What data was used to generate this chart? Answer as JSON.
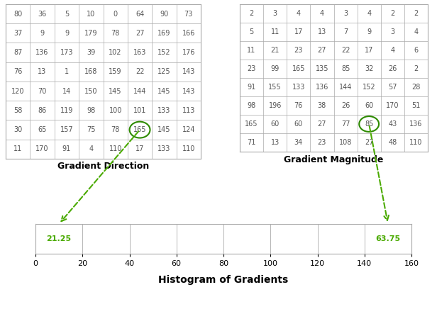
{
  "grad_dir": [
    [
      80,
      36,
      5,
      10,
      0,
      64,
      90,
      73
    ],
    [
      37,
      9,
      9,
      179,
      78,
      27,
      169,
      166
    ],
    [
      87,
      136,
      173,
      39,
      102,
      163,
      152,
      176
    ],
    [
      76,
      13,
      1,
      168,
      159,
      22,
      125,
      143
    ],
    [
      120,
      70,
      14,
      150,
      145,
      144,
      145,
      143
    ],
    [
      58,
      86,
      119,
      98,
      100,
      101,
      133,
      113
    ],
    [
      30,
      65,
      157,
      75,
      78,
      165,
      145,
      124
    ],
    [
      11,
      170,
      91,
      4,
      110,
      17,
      133,
      110
    ]
  ],
  "grad_dir_circle_row": 6,
  "grad_dir_circle_col": 5,
  "grad_mag": [
    [
      2,
      3,
      4,
      4,
      3,
      4,
      2,
      2
    ],
    [
      5,
      11,
      17,
      13,
      7,
      9,
      3,
      4
    ],
    [
      11,
      21,
      23,
      27,
      22,
      17,
      4,
      6
    ],
    [
      23,
      99,
      165,
      135,
      85,
      32,
      26,
      2
    ],
    [
      91,
      155,
      133,
      136,
      144,
      152,
      57,
      28
    ],
    [
      98,
      196,
      76,
      38,
      26,
      60,
      170,
      51
    ],
    [
      165,
      60,
      60,
      27,
      77,
      85,
      43,
      136
    ],
    [
      71,
      13,
      34,
      23,
      108,
      27,
      48,
      110
    ]
  ],
  "grad_mag_circle_row": 6,
  "grad_mag_circle_col": 5,
  "hist_bins": [
    0,
    20,
    40,
    60,
    80,
    100,
    120,
    140,
    160
  ],
  "hist_bin1_label": "21.25",
  "hist_bin8_label": "63.75",
  "title_dir": "Gradient Direction",
  "title_mag": "Gradient Magnitude",
  "title_hist": "Histogram of Gradients",
  "circle_color": "#2e8b00",
  "arrow_color": "#4aaa00",
  "table_text_color": "#555555",
  "green_text_color": "#4aaa00",
  "background_color": "#ffffff",
  "grid_color": "#aaaaaa",
  "table_fontsize": 7,
  "title_fontsize": 9,
  "hist_label_fontsize": 8,
  "hist_title_fontsize": 10,
  "hist_tick_fontsize": 8
}
